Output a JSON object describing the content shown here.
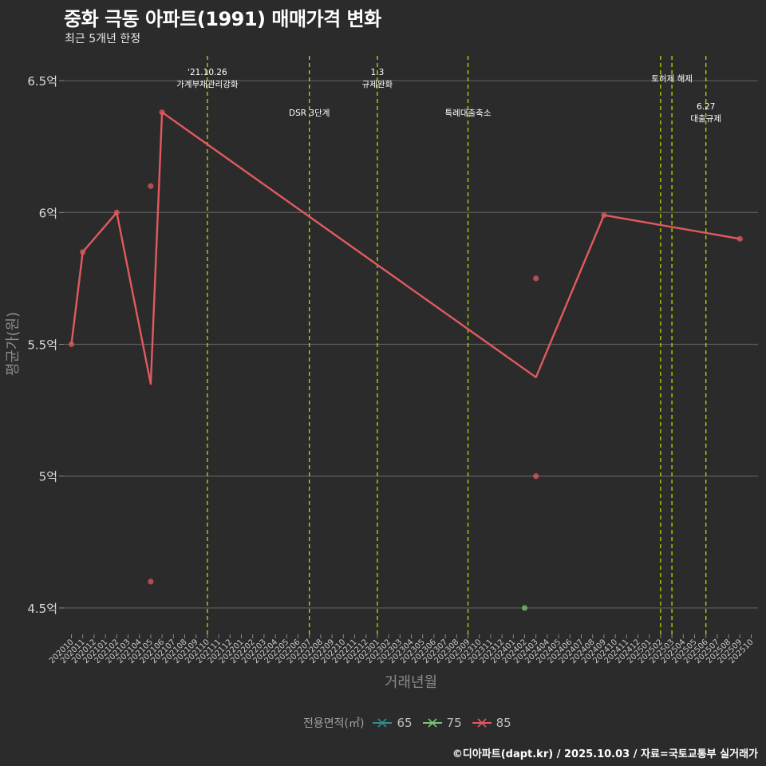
{
  "chart_data": {
    "type": "line",
    "title": "중화 극동 아파트(1991) 매매가격 변화",
    "subtitle": "최근 5개년 한정",
    "xlabel": "거래년월",
    "ylabel": "평균가(원)",
    "ylim": [
      4.4,
      6.6
    ],
    "y_ticks": [
      {
        "value": 4.5,
        "label": "4.5억"
      },
      {
        "value": 5.0,
        "label": "5억"
      },
      {
        "value": 5.5,
        "label": "5.5억"
      },
      {
        "value": 6.0,
        "label": "6억"
      },
      {
        "value": 6.5,
        "label": "6.5억"
      }
    ],
    "categories": [
      "202010",
      "202011",
      "202012",
      "202101",
      "202102",
      "202103",
      "202104",
      "202105",
      "202106",
      "202107",
      "202108",
      "202109",
      "202110",
      "202111",
      "202112",
      "202201",
      "202202",
      "202203",
      "202204",
      "202205",
      "202206",
      "202207",
      "202208",
      "202209",
      "202210",
      "202211",
      "202212",
      "202301",
      "202302",
      "202303",
      "202304",
      "202305",
      "202306",
      "202307",
      "202308",
      "202309",
      "202310",
      "202311",
      "202312",
      "202401",
      "202402",
      "202403",
      "202404",
      "202405",
      "202406",
      "202407",
      "202408",
      "202409",
      "202410",
      "202411",
      "202412",
      "202501",
      "202502",
      "202503",
      "202504",
      "202505",
      "202506",
      "202507",
      "202508",
      "202509",
      "202510"
    ],
    "series": [
      {
        "name": "85",
        "color": "#e05a5e",
        "line": [
          {
            "x": "202010",
            "y": 5.5
          },
          {
            "x": "202011",
            "y": 5.85
          },
          {
            "x": "202102",
            "y": 6.0
          },
          {
            "x": "202105",
            "y": 5.35
          },
          {
            "x": "202106",
            "y": 6.38
          },
          {
            "x": "202403",
            "y": 5.375
          },
          {
            "x": "202409",
            "y": 5.99
          },
          {
            "x": "202509",
            "y": 5.9
          }
        ],
        "points": [
          {
            "x": "202010",
            "y": 5.5
          },
          {
            "x": "202011",
            "y": 5.85
          },
          {
            "x": "202102",
            "y": 6.0
          },
          {
            "x": "202105",
            "y": 6.1
          },
          {
            "x": "202105",
            "y": 4.6
          },
          {
            "x": "202106",
            "y": 6.38
          },
          {
            "x": "202403",
            "y": 5.75
          },
          {
            "x": "202403",
            "y": 5.0
          },
          {
            "x": "202409",
            "y": 5.99
          },
          {
            "x": "202509",
            "y": 5.9
          }
        ]
      },
      {
        "name": "75",
        "color": "#7ac47a",
        "line": [],
        "points": [
          {
            "x": "202402",
            "y": 4.5
          }
        ]
      },
      {
        "name": "65",
        "color": "#2f8f8f",
        "line": [],
        "points": []
      }
    ],
    "events": [
      {
        "x": "202110",
        "lines": [
          "'21.10.26",
          "가계부채관리강화"
        ],
        "row": 0
      },
      {
        "x": "202207",
        "lines": [
          "DSR 3단계"
        ],
        "row": 1
      },
      {
        "x": "202301",
        "lines": [
          "1.3",
          "규제완화"
        ],
        "row": 0
      },
      {
        "x": "202309",
        "lines": [
          "특례대출축소"
        ],
        "row": 1
      },
      {
        "x": "202502",
        "lines": [],
        "row": 0
      },
      {
        "x": "202503",
        "lines": [
          "토허제 해제"
        ],
        "row": 0
      },
      {
        "x": "202506",
        "lines": [
          "6.27",
          "대출규제"
        ],
        "row": 1
      }
    ],
    "legend": {
      "title": "전용면적(㎡)",
      "items": [
        {
          "label": "65",
          "color": "#2f8f8f"
        },
        {
          "label": "75",
          "color": "#7ac47a"
        },
        {
          "label": "85",
          "color": "#e05a5e"
        }
      ],
      "position": "bottom"
    },
    "event_line_color": "#c8d400",
    "grid": true
  },
  "caption": "©디아파트(dapt.kr) / 2025.10.03 / 자료=국토교통부 실거래가"
}
